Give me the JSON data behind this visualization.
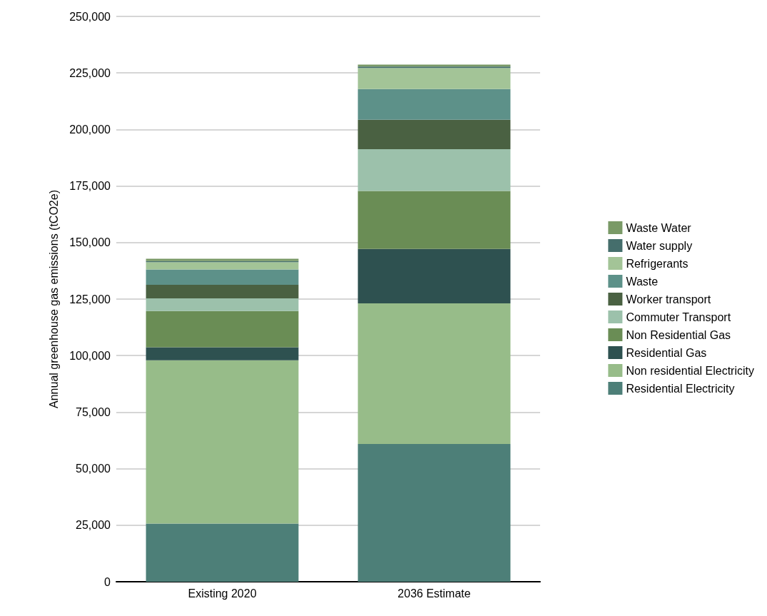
{
  "chart_data": {
    "type": "bar",
    "stacked": true,
    "ylabel": "Annual greenhouse gas emissions (tCO2e)",
    "categories": [
      "Existing 2020",
      "2036 Estimate"
    ],
    "series": [
      {
        "name": "Residential Electricity",
        "color": "#4d7f78",
        "values": [
          25700,
          60900
        ]
      },
      {
        "name": "Non residential Electricity",
        "color": "#97bc89",
        "values": [
          72200,
          62200
        ]
      },
      {
        "name": "Residential Gas",
        "color": "#2e5150",
        "values": [
          5800,
          24100
        ]
      },
      {
        "name": "Non Residential Gas",
        "color": "#6a8d55",
        "values": [
          16000,
          25600
        ]
      },
      {
        "name": "Commuter Transport",
        "color": "#9cc1ab",
        "values": [
          5600,
          18500
        ]
      },
      {
        "name": "Worker transport",
        "color": "#4a6142",
        "values": [
          6000,
          13000
        ]
      },
      {
        "name": "Waste",
        "color": "#5d9189",
        "values": [
          6800,
          13600
        ]
      },
      {
        "name": "Refrigerants",
        "color": "#a3c497",
        "values": [
          3200,
          9300
        ]
      },
      {
        "name": "Water supply",
        "color": "#456e6c",
        "values": [
          500,
          600
        ]
      },
      {
        "name": "Waste Water",
        "color": "#7a9a67",
        "values": [
          1000,
          900
        ]
      }
    ],
    "ylim": [
      0,
      250000
    ],
    "yticks": [
      0,
      {
        "value": 25000,
        "label": "25,000"
      },
      {
        "value": 50000,
        "label": "50,000"
      },
      {
        "value": 75000,
        "label": "75,000"
      },
      {
        "value": 100000,
        "label": "100,000"
      },
      {
        "value": 125000,
        "label": "125,000"
      },
      {
        "value": 150000,
        "label": "150,000"
      },
      {
        "value": 175000,
        "label": "175,000"
      },
      {
        "value": 200000,
        "label": "200,000"
      },
      {
        "value": 225000,
        "label": "225,000"
      },
      {
        "value": 250000,
        "label": "250,000"
      }
    ],
    "grid": "y",
    "legend": "right"
  }
}
